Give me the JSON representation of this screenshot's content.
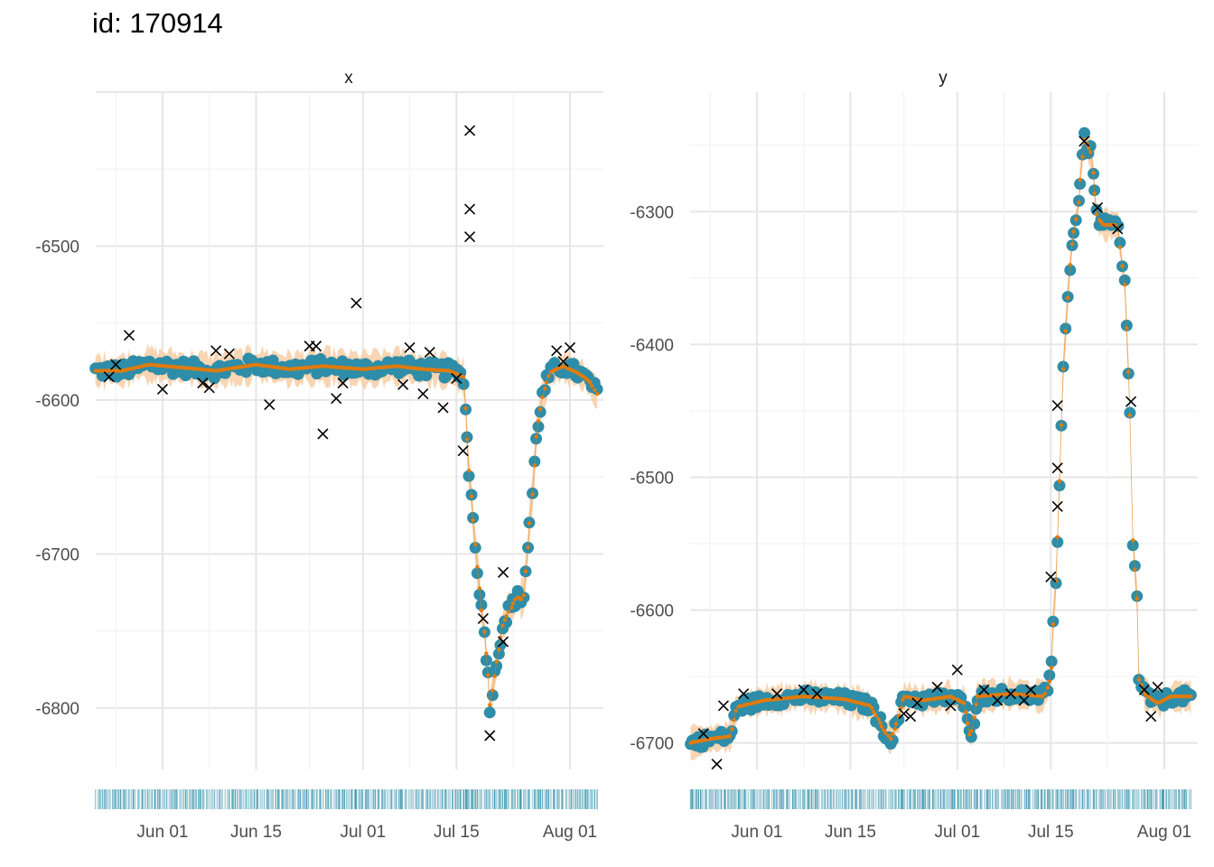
{
  "title": "id: 170914",
  "colors": {
    "observed_point": "#2E8DA8",
    "fitted": "#E07B0F",
    "ribbon": "#F7CBA0",
    "outlier": "#000000",
    "grid_major": "#E6E6E6",
    "grid_minor": "#F2F2F2"
  },
  "chart_data": [
    {
      "type": "scatter",
      "facet": "x",
      "x_axis": {
        "type": "date",
        "range": [
          "2020-05-22",
          "2020-08-06"
        ],
        "ticks": [
          "Jun 01",
          "Jun 15",
          "Jul 01",
          "Jul 15",
          "Aug 01"
        ]
      },
      "y_axis": {
        "range": [
          -6840,
          -6400
        ],
        "ticks": [
          "-6500",
          "-6600",
          "-6700",
          "-6800"
        ]
      },
      "grid": true,
      "rug": true,
      "outliers_x": [
        [
          "2020-05-24",
          -6585
        ],
        [
          "2020-05-25",
          -6577
        ],
        [
          "2020-05-27",
          -6558
        ],
        [
          "2020-06-01",
          -6593
        ],
        [
          "2020-06-07",
          -6589
        ],
        [
          "2020-06-08",
          -6592
        ],
        [
          "2020-06-09",
          -6568
        ],
        [
          "2020-06-11",
          -6570
        ],
        [
          "2020-06-17",
          -6603
        ],
        [
          "2020-06-23",
          -6565
        ],
        [
          "2020-06-24",
          -6565
        ],
        [
          "2020-06-25",
          -6622
        ],
        [
          "2020-06-27",
          -6599
        ],
        [
          "2020-06-28",
          -6589
        ],
        [
          "2020-06-30",
          -6537
        ],
        [
          "2020-07-07",
          -6590
        ],
        [
          "2020-07-08",
          -6566
        ],
        [
          "2020-07-10",
          -6596
        ],
        [
          "2020-07-11",
          -6569
        ],
        [
          "2020-07-13",
          -6605
        ],
        [
          "2020-07-15",
          -6586
        ],
        [
          "2020-07-16",
          -6633
        ],
        [
          "2020-07-17",
          -6494
        ],
        [
          "2020-07-17",
          -6476
        ],
        [
          "2020-07-17",
          -6425
        ],
        [
          "2020-07-19",
          -6742
        ],
        [
          "2020-07-20",
          -6818
        ],
        [
          "2020-07-22",
          -6757
        ],
        [
          "2020-07-22",
          -6712
        ],
        [
          "2020-07-30",
          -6568
        ],
        [
          "2020-07-31",
          -6575
        ],
        [
          "2020-08-01",
          -6566
        ]
      ],
      "anchors": [
        [
          "2020-05-22",
          -6581
        ],
        [
          "2020-05-26",
          -6581
        ],
        [
          "2020-05-30",
          -6577
        ],
        [
          "2020-06-04",
          -6579
        ],
        [
          "2020-06-09",
          -6581
        ],
        [
          "2020-06-15",
          -6577
        ],
        [
          "2020-06-20",
          -6580
        ],
        [
          "2020-06-25",
          -6578
        ],
        [
          "2020-07-01",
          -6580
        ],
        [
          "2020-07-06",
          -6578
        ],
        [
          "2020-07-10",
          -6580
        ],
        [
          "2020-07-14",
          -6581
        ],
        [
          "2020-07-16",
          -6585
        ],
        [
          "2020-07-17",
          -6650
        ],
        [
          "2020-07-18",
          -6700
        ],
        [
          "2020-07-19",
          -6745
        ],
        [
          "2020-07-20",
          -6790
        ],
        [
          "2020-07-20",
          -6800
        ],
        [
          "2020-07-21",
          -6770
        ],
        [
          "2020-07-22",
          -6745
        ],
        [
          "2020-07-24",
          -6728
        ],
        [
          "2020-07-25",
          -6730
        ],
        [
          "2020-07-26",
          -6680
        ],
        [
          "2020-07-27",
          -6620
        ],
        [
          "2020-07-28",
          -6595
        ],
        [
          "2020-07-29",
          -6582
        ],
        [
          "2020-07-31",
          -6578
        ],
        [
          "2020-08-02",
          -6582
        ],
        [
          "2020-08-04",
          -6588
        ],
        [
          "2020-08-05",
          -6596
        ]
      ]
    },
    {
      "type": "scatter",
      "facet": "y",
      "x_axis": {
        "type": "date",
        "range": [
          "2020-05-22",
          "2020-08-06"
        ],
        "ticks": [
          "Jun 01",
          "Jun 15",
          "Jul 01",
          "Jul 15",
          "Aug 01"
        ]
      },
      "y_axis": {
        "range": [
          -6720,
          -6210
        ],
        "ticks": [
          "-6300",
          "-6400",
          "-6500",
          "-6600",
          "-6700"
        ]
      },
      "grid": true,
      "rug": true,
      "outliers_x": [
        [
          "2020-05-24",
          -6693
        ],
        [
          "2020-05-26",
          -6716
        ],
        [
          "2020-05-27",
          -6672
        ],
        [
          "2020-05-30",
          -6663
        ],
        [
          "2020-06-04",
          -6663
        ],
        [
          "2020-06-08",
          -6660
        ],
        [
          "2020-06-10",
          -6663
        ],
        [
          "2020-06-23",
          -6678
        ],
        [
          "2020-06-24",
          -6680
        ],
        [
          "2020-06-25",
          -6670
        ],
        [
          "2020-06-28",
          -6658
        ],
        [
          "2020-06-30",
          -6672
        ],
        [
          "2020-07-01",
          -6645
        ],
        [
          "2020-07-05",
          -6660
        ],
        [
          "2020-07-07",
          -6668
        ],
        [
          "2020-07-09",
          -6663
        ],
        [
          "2020-07-11",
          -6668
        ],
        [
          "2020-07-12",
          -6660
        ],
        [
          "2020-07-15",
          -6575
        ],
        [
          "2020-07-16",
          -6522
        ],
        [
          "2020-07-16",
          -6493
        ],
        [
          "2020-07-16",
          -6446
        ],
        [
          "2020-07-20",
          -6247
        ],
        [
          "2020-07-22",
          -6297
        ],
        [
          "2020-07-25",
          -6313
        ],
        [
          "2020-07-27",
          -6443
        ],
        [
          "2020-07-29",
          -6660
        ],
        [
          "2020-07-30",
          -6680
        ],
        [
          "2020-07-31",
          -6658
        ]
      ],
      "anchors": [
        [
          "2020-05-22",
          -6700
        ],
        [
          "2020-05-25",
          -6697
        ],
        [
          "2020-05-28",
          -6695
        ],
        [
          "2020-05-29",
          -6673
        ],
        [
          "2020-06-02",
          -6668
        ],
        [
          "2020-06-08",
          -6665
        ],
        [
          "2020-06-14",
          -6667
        ],
        [
          "2020-06-18",
          -6672
        ],
        [
          "2020-06-20",
          -6690
        ],
        [
          "2020-06-21",
          -6697
        ],
        [
          "2020-06-22",
          -6685
        ],
        [
          "2020-06-23",
          -6665
        ],
        [
          "2020-06-26",
          -6668
        ],
        [
          "2020-06-30",
          -6665
        ],
        [
          "2020-07-02",
          -6670
        ],
        [
          "2020-07-03",
          -6697
        ],
        [
          "2020-07-04",
          -6665
        ],
        [
          "2020-07-09",
          -6663
        ],
        [
          "2020-07-14",
          -6665
        ],
        [
          "2020-07-15",
          -6650
        ],
        [
          "2020-07-16",
          -6545
        ],
        [
          "2020-07-17",
          -6410
        ],
        [
          "2020-07-18",
          -6330
        ],
        [
          "2020-07-19",
          -6300
        ],
        [
          "2020-07-20",
          -6245
        ],
        [
          "2020-07-21",
          -6255
        ],
        [
          "2020-07-22",
          -6305
        ],
        [
          "2020-07-23",
          -6310
        ],
        [
          "2020-07-25",
          -6310
        ],
        [
          "2020-07-26",
          -6355
        ],
        [
          "2020-07-27",
          -6460
        ],
        [
          "2020-07-27",
          -6530
        ],
        [
          "2020-07-28",
          -6600
        ],
        [
          "2020-07-28",
          -6650
        ],
        [
          "2020-07-29",
          -6663
        ],
        [
          "2020-07-31",
          -6670
        ],
        [
          "2020-08-02",
          -6665
        ],
        [
          "2020-08-04",
          -6665
        ],
        [
          "2020-08-05",
          -6665
        ]
      ]
    }
  ]
}
